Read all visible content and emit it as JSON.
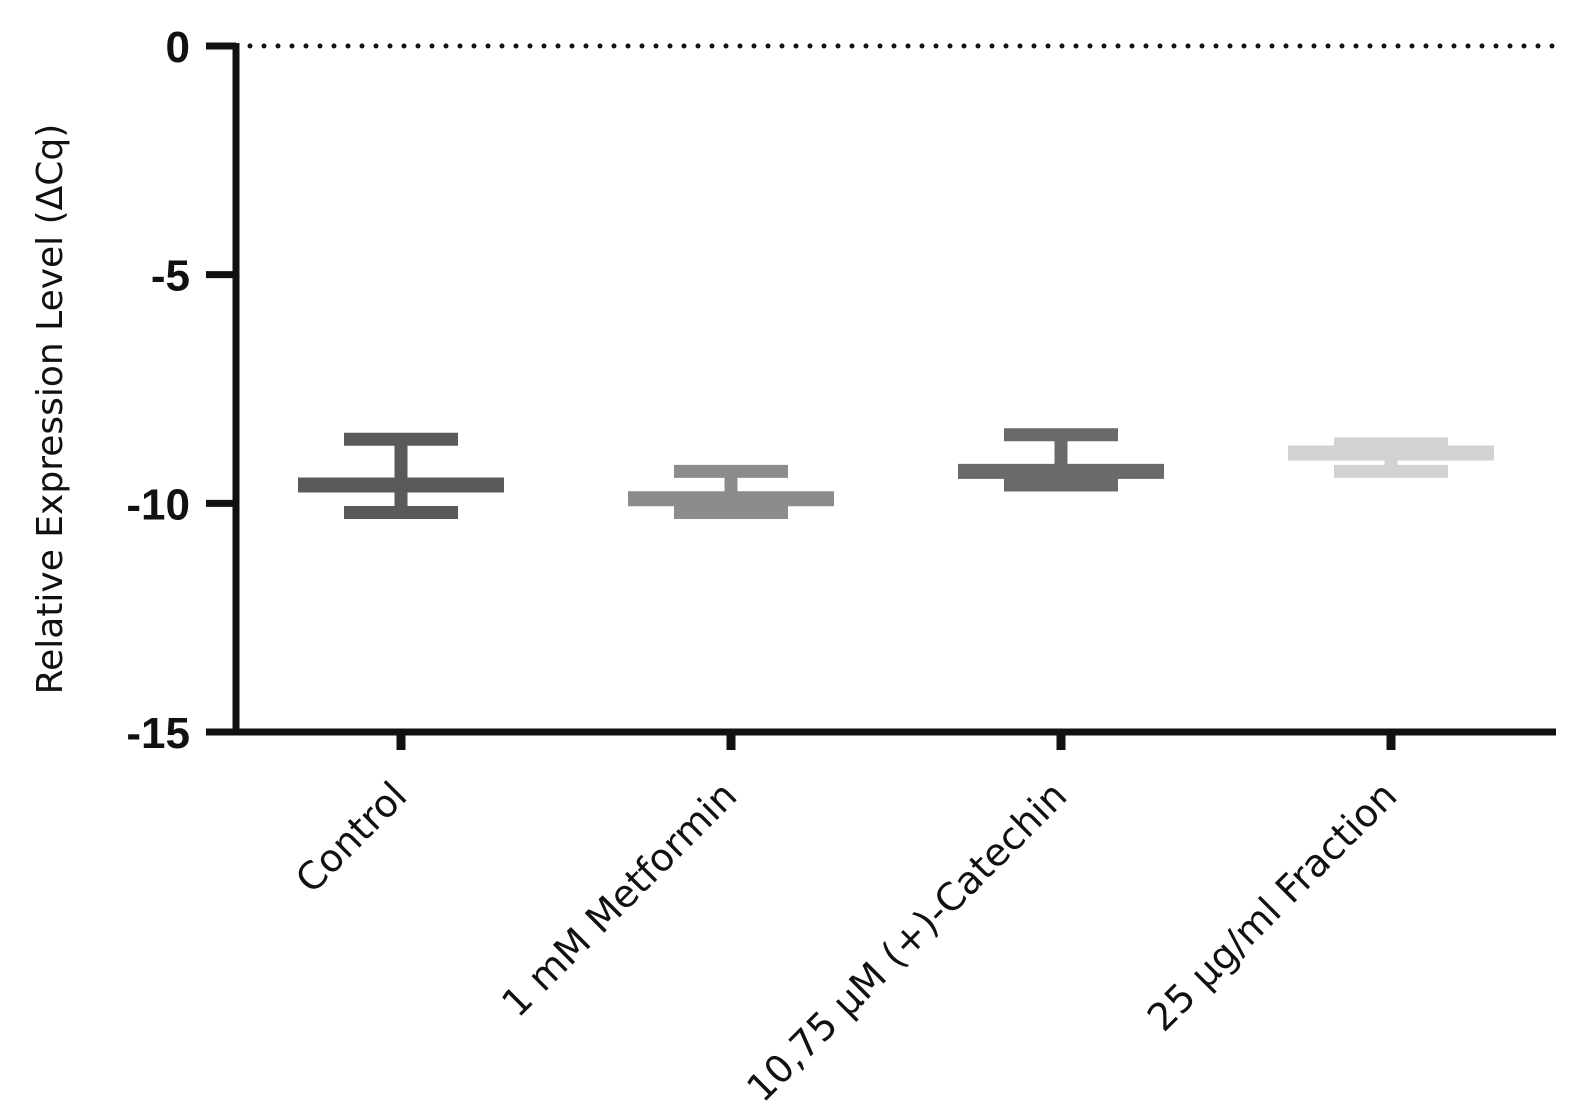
{
  "chart_data": {
    "type": "bar",
    "title": "",
    "xlabel": "",
    "ylabel": "Relative Expression Level (ΔCq)",
    "ylim": [
      -15,
      0
    ],
    "yticks": [
      0,
      -5,
      -10,
      -15
    ],
    "ytick_labels": [
      "0",
      "-5",
      "-10",
      "-15"
    ],
    "reference_line": {
      "value": 0,
      "style": "dotted"
    },
    "grid": false,
    "legend": "none",
    "categories": [
      "Control",
      "1 mM Metformin",
      "10,75 µM (+)-Catechin",
      "25 µg/ml Fraction"
    ],
    "values": [
      -9.6,
      -9.9,
      -9.3,
      -8.9
    ],
    "error_low": [
      -10.2,
      -10.2,
      -9.6,
      -9.3
    ],
    "error_high": [
      -8.6,
      -9.3,
      -8.5,
      -8.7
    ],
    "colors": [
      "#5a5a5a",
      "#8c8c8c",
      "#6a6a6a",
      "#d2d2d2"
    ]
  }
}
